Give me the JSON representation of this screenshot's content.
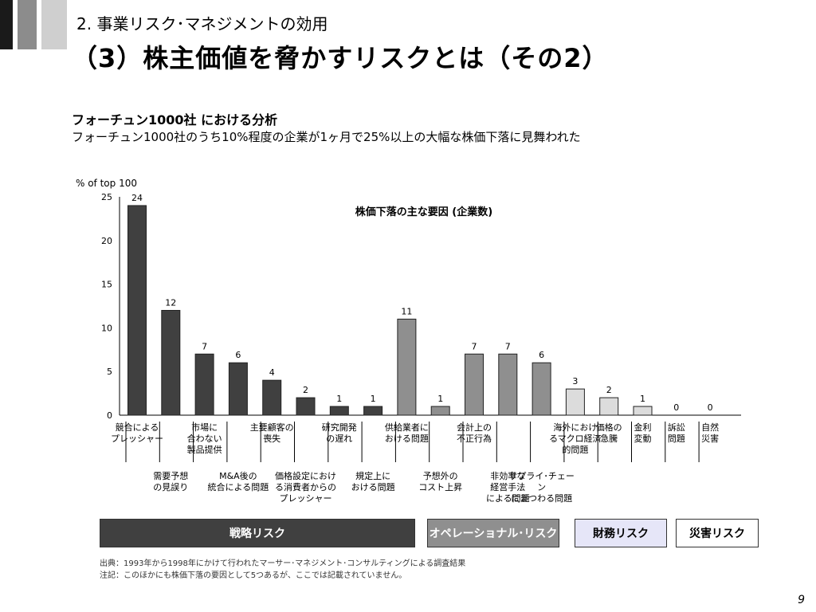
{
  "header": {
    "subtitle": "2. 事業リスク･マネジメントの効用",
    "title": "（3）株主価値を脅かすリスクとは（その2）"
  },
  "analysis": {
    "title": "フォーチュン1000社 における分析",
    "description": "フォーチュン1000社のうち10%程度の企業が1ヶ月で25%以上の大幅な株価下落に見舞われた"
  },
  "chart_data": {
    "type": "bar",
    "title": "株価下落の主な要因 (企業数)",
    "ylabel": "% of top 100",
    "ylim": [
      0,
      25
    ],
    "yticks": [
      0,
      5,
      10,
      15,
      20,
      25
    ],
    "grid": false,
    "categories": [
      "競合による\nプレッシャー",
      "需要予想\nの見誤り",
      "市場に\n合わない\n製品提供",
      "M&A後の\n統合による問題",
      "主要顧客の\n喪失",
      "価格設定におけ\nる消費者からの\nプレッシャー",
      "研究開発\nの遅れ",
      "規定上に\nおける問題",
      "予想外の\nコスト上昇",
      "供給業者に\nおける問題",
      "非効率な\n経営手法\nによる問題",
      "会計上の\n不正行為",
      "サプライ･チェーン\nにまつわる問題",
      "海外におけ\nるマクロ経済\n的問題",
      "価格の\n急騰",
      "金利\n変動",
      "訴訟\n問題",
      "自然\n災害"
    ],
    "values": [
      24,
      12,
      7,
      6,
      4,
      2,
      1,
      1,
      1,
      11,
      7,
      7,
      6,
      3,
      2,
      1,
      0,
      0
    ],
    "bar_order": [
      0,
      1,
      2,
      3,
      4,
      5,
      6,
      7,
      9,
      8,
      11,
      10,
      12,
      13,
      14,
      15,
      16,
      17
    ],
    "label_row": [
      1,
      2,
      1,
      2,
      1,
      2,
      1,
      2,
      1,
      2,
      1,
      2,
      2,
      1,
      1,
      1,
      1,
      1
    ],
    "groups": [
      0,
      0,
      0,
      0,
      0,
      0,
      0,
      0,
      1,
      1,
      1,
      1,
      1,
      2,
      2,
      2,
      2,
      3
    ],
    "colors": {
      "strategic": "#404040",
      "operational": "#8f8f8f",
      "financial": "#dcdcdc",
      "disaster": "#ffffff",
      "outline": "#222222"
    }
  },
  "legend": {
    "strategic": "戦略リスク",
    "operational": "オペレーショナル･リスク",
    "financial": "財務リスク",
    "disaster": "災害リスク"
  },
  "footnotes": {
    "source": "出典：1993年から1998年にかけて行われたマーサー･マネジメント･コンサルティングによる調査結果",
    "note": "注記：このほかにも株価下落の要因として5つあるが、ここでは記載されていません。"
  },
  "page_number": "9"
}
